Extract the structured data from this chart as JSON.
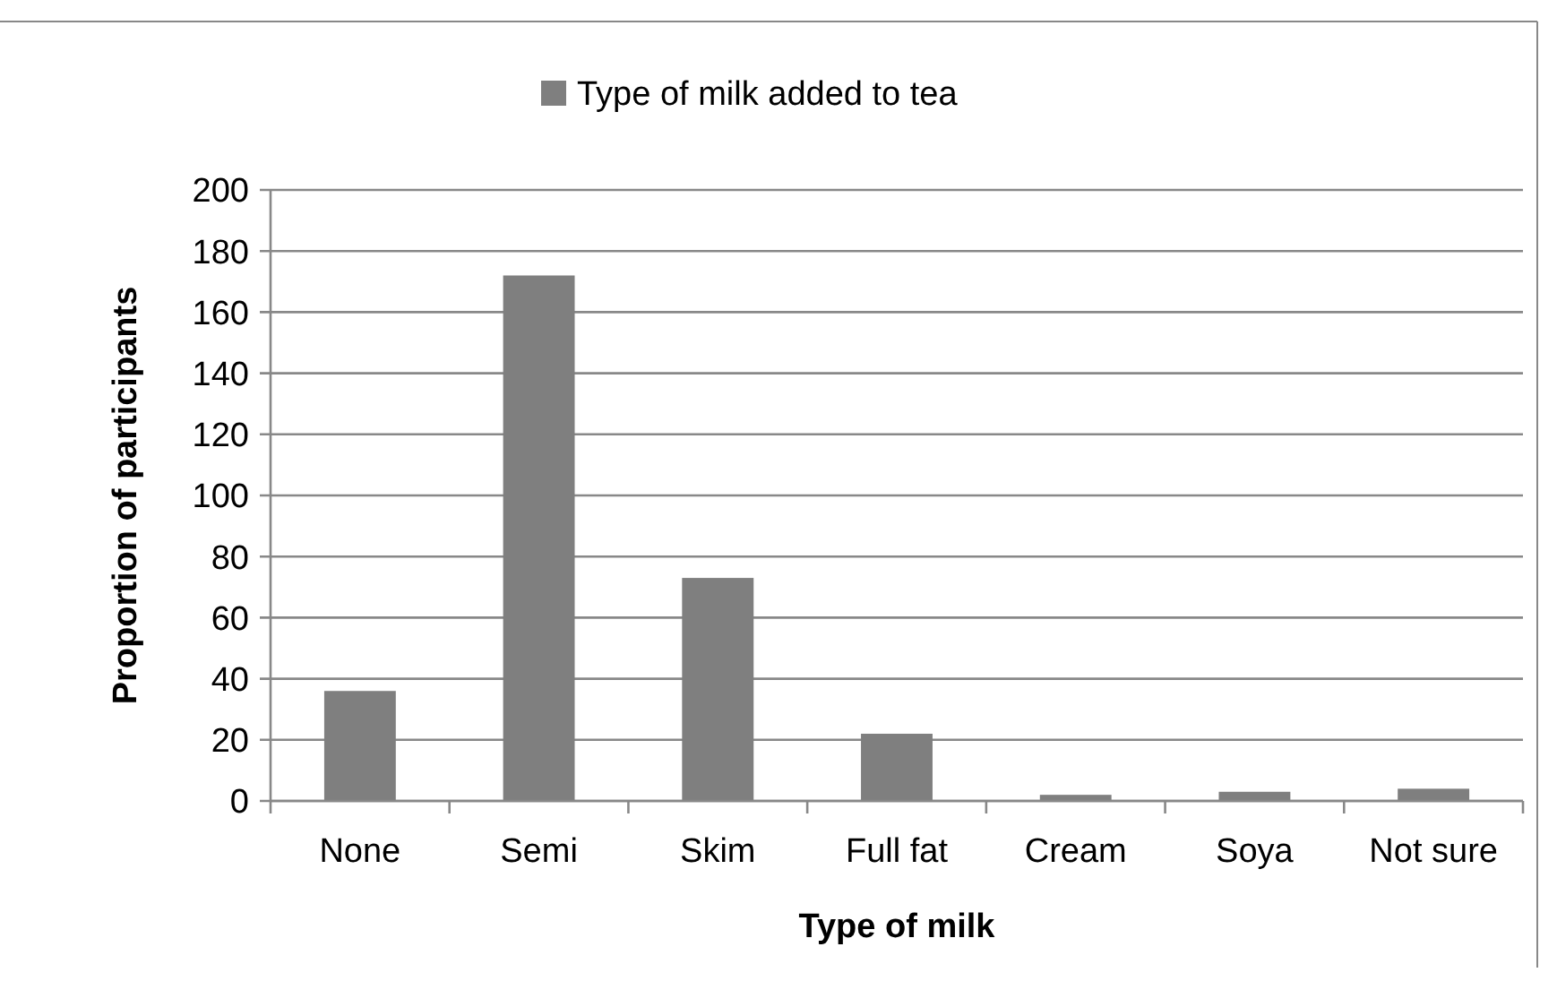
{
  "chart_data": {
    "type": "bar",
    "categories": [
      "None",
      "Semi",
      "Skim",
      "Full fat",
      "Cream",
      "Soya",
      "Not sure"
    ],
    "series": [
      {
        "name": "Type of milk added to tea",
        "color": "#7f7f7f",
        "values": [
          36,
          172,
          73,
          22,
          2,
          3,
          4
        ]
      }
    ],
    "xlabel": "Type of milk",
    "ylabel": "Proportion of participants",
    "ylim": [
      0,
      200
    ],
    "yticks": [
      0,
      20,
      40,
      60,
      80,
      100,
      120,
      140,
      160,
      180,
      200
    ],
    "grid": "y",
    "legend": "top"
  }
}
